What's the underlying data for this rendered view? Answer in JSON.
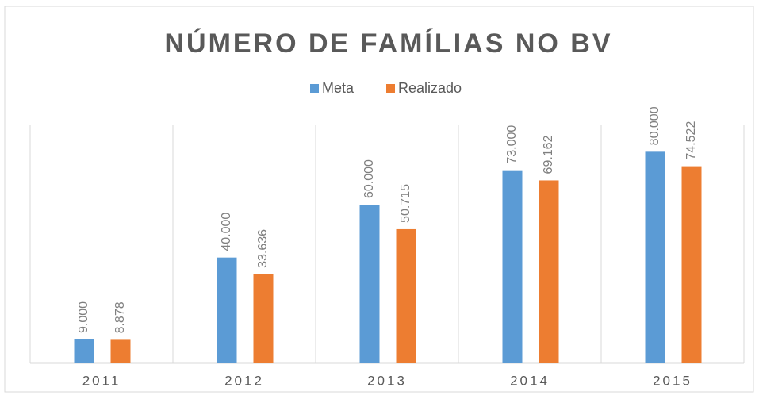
{
  "chart_data": {
    "type": "bar",
    "title": "NÚMERO DE FAMÍLIAS NO BV",
    "categories": [
      "2011",
      "2012",
      "2013",
      "2014",
      "2015"
    ],
    "series": [
      {
        "name": "Meta",
        "color": "#5b9bd5",
        "values": [
          9000,
          40000,
          60000,
          73000,
          80000
        ],
        "value_labels": [
          "9.000",
          "40.000",
          "60.000",
          "73.000",
          "80.000"
        ]
      },
      {
        "name": "Realizado",
        "color": "#ed7d31",
        "values": [
          8878,
          33636,
          50715,
          69162,
          74522
        ],
        "value_labels": [
          "8.878",
          "33.636",
          "50.715",
          "69.162",
          "74.522"
        ]
      }
    ],
    "ylim": [
      0,
      90000
    ]
  }
}
